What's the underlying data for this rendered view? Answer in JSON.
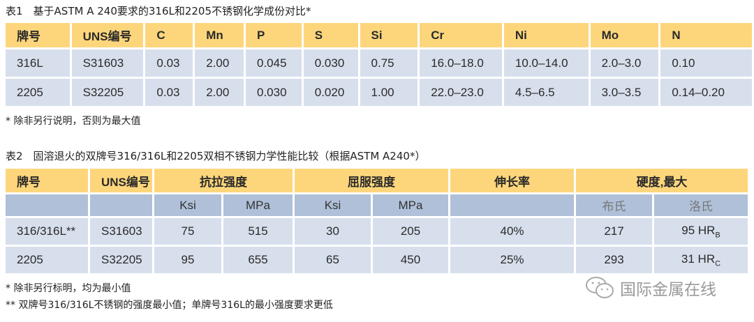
{
  "table1": {
    "caption": "表1　基于ASTM A 240要求的316L和2205不锈钢化学成份对比*",
    "headers": [
      "牌号",
      "UNS编号",
      "C",
      "Mn",
      "P",
      "S",
      "Si",
      "Cr",
      "Ni",
      "Mo",
      "N"
    ],
    "rows": [
      [
        "316L",
        "S31603",
        "0.03",
        "2.00",
        "0.045",
        "0.030",
        "0.75",
        "16.0–18.0",
        "10.0–14.0",
        "2.0–3.0",
        "0.10"
      ],
      [
        "2205",
        "S32205",
        "0.03",
        "2.00",
        "0.030",
        "0.020",
        "1.00",
        "22.0–23.0",
        "4.5–6.5",
        "3.0–3.5",
        "0.14–0.20"
      ]
    ],
    "footnote": "*  除非另行说明，否则为最大值"
  },
  "table2": {
    "caption": "表2　固溶退火的双牌号316/316L和2205双相不锈钢力学性能比较（根据ASTM A240*）",
    "headers": [
      "牌号",
      "UNS编号",
      "抗拉强度",
      "屈服强度",
      "伸长率",
      "硬度,最大"
    ],
    "subheaders": [
      "",
      "",
      "Ksi",
      "MPa",
      "Ksi",
      "MPa",
      "",
      "布氏",
      "洛氏"
    ],
    "rows": [
      [
        "316/316L**",
        "S31603",
        "75",
        "515",
        "30",
        "205",
        "40%",
        "217",
        "95 HR",
        "B"
      ],
      [
        "2205",
        "S32205",
        "95",
        "655",
        "65",
        "450",
        "25%",
        "293",
        "31 HR",
        "C"
      ]
    ],
    "footnotes": [
      "*  除非另行标明，均为最小值",
      "** 双牌号316/316L不锈钢的强度最小值；单牌号316L的最小强度要求更低"
    ]
  },
  "watermark": {
    "text": "国际金属在线",
    "icon": "wechat-icon"
  },
  "colors": {
    "header": "#fdd67c",
    "subheader": "#afc0d8",
    "row": "#d7dfec"
  }
}
